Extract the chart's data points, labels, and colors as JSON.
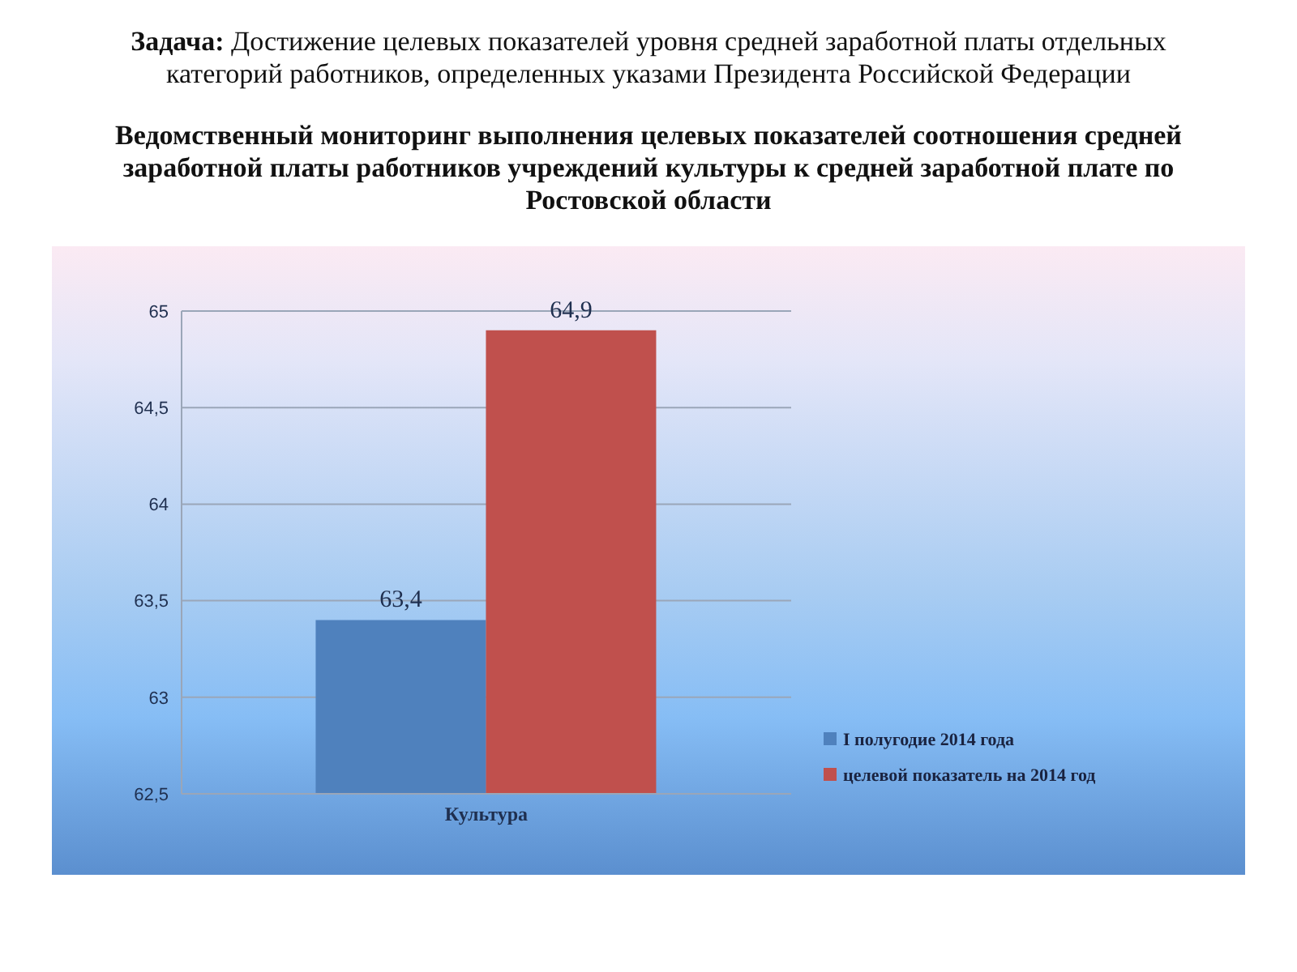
{
  "chart_data": {
    "type": "bar",
    "title": "Задача: Достижение целевых показателей уровня средней заработной платы отдельных категорий работников, определенных указами Президента Российской Федерации",
    "subtitle": "Ведомственный мониторинг выполнения целевых показателей соотношения средней заработной платы работников учреждений культуры к средней заработной плате по Ростовской области",
    "categories": [
      "Культура"
    ],
    "series": [
      {
        "name": "I полугодие 2014 года",
        "color": "#4f81bd",
        "values": [
          63.4
        ],
        "value_labels": [
          "63,4"
        ]
      },
      {
        "name": "целевой показатель на 2014 год",
        "color": "#c0504d",
        "values": [
          64.9
        ],
        "value_labels": [
          "64,9"
        ]
      }
    ],
    "ylim": [
      62.5,
      65
    ],
    "yticks": [
      {
        "value": 62.5,
        "label": "62,5"
      },
      63,
      {
        "value": 63.5,
        "label": "63,5"
      },
      64,
      {
        "value": 64.5,
        "label": "64,5"
      },
      65
    ],
    "grid": "y",
    "legend": "bottom right"
  }
}
